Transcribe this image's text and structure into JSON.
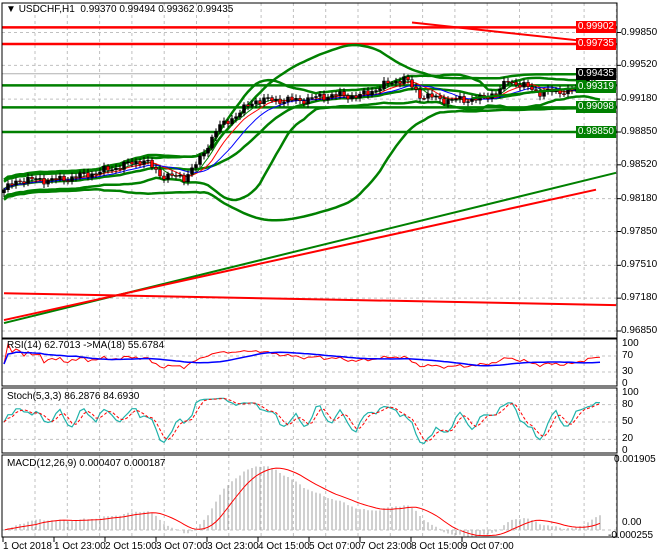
{
  "header": {
    "symbol": "USDCHF,H1",
    "open": "0.99370",
    "high": "0.99494",
    "low": "0.99362",
    "close": "0.99435"
  },
  "chart_data": {
    "type": "candlestick",
    "symbol": "USDCHF",
    "timeframe": "H1",
    "price_axis": {
      "ticks": [
        "0.99850",
        "0.99520",
        "0.99180",
        "0.98850",
        "0.98520",
        "0.98180",
        "0.97850",
        "0.97510",
        "0.97180",
        "0.96850"
      ],
      "range": [
        0.9685,
        1.0005
      ]
    },
    "time_axis": {
      "ticks": [
        "1 Oct 2018",
        "1 Oct 23:00",
        "2 Oct 15:00",
        "3 Oct 07:00",
        "3 Oct 23:00",
        "4 Oct 15:00",
        "5 Oct 07:00",
        "7 Oct 23:00",
        "8 Oct 15:00",
        "9 Oct 07:00"
      ]
    },
    "bar_count": 150,
    "close_path": [
      [
        0,
        0.9827
      ],
      [
        4,
        0.9837
      ],
      [
        14,
        0.9837
      ],
      [
        24,
        0.9845
      ],
      [
        35,
        0.9857
      ],
      [
        39,
        0.9842
      ],
      [
        45,
        0.9839
      ],
      [
        49,
        0.9857
      ],
      [
        53,
        0.9887
      ],
      [
        58,
        0.9902
      ],
      [
        63,
        0.9917
      ],
      [
        74,
        0.9917
      ],
      [
        82,
        0.9922
      ],
      [
        89,
        0.9921
      ],
      [
        95,
        0.9932
      ],
      [
        100,
        0.9939
      ],
      [
        104,
        0.9922
      ],
      [
        111,
        0.9917
      ],
      [
        119,
        0.9918
      ],
      [
        124,
        0.9927
      ],
      [
        126,
        0.9937
      ],
      [
        134,
        0.9925
      ],
      [
        143,
        0.9927
      ],
      [
        146,
        0.994
      ],
      [
        149,
        0.99435
      ]
    ],
    "price_labels": [
      {
        "value": "0.99902",
        "color": "#ff0000"
      },
      {
        "value": "0.99735",
        "color": "#ff0000"
      },
      {
        "value": "0.99435",
        "color": "#000000"
      },
      {
        "value": "0.99319",
        "color": "#008000"
      },
      {
        "value": "0.99098",
        "color": "#008000"
      },
      {
        "value": "0.98850",
        "color": "#008000"
      }
    ],
    "horizontal_levels": [
      {
        "price": 0.99902,
        "color": "#ff0000"
      },
      {
        "price": 0.99735,
        "color": "#ff0000"
      },
      {
        "price": 0.99319,
        "color": "#008000"
      },
      {
        "price": 0.99098,
        "color": "#008000"
      },
      {
        "price": 0.9885,
        "color": "#008000"
      }
    ],
    "trendlines": [
      {
        "from": [
          102,
          0.9995
        ],
        "to": [
          153,
          0.9973
        ],
        "color": "#ff0000"
      },
      {
        "from": [
          117,
          0.9919
        ],
        "to": [
          153,
          0.9933
        ],
        "color": "#008000"
      },
      {
        "from": [
          0,
          0.9693
        ],
        "to": [
          153,
          0.9844
        ],
        "color": "#008000"
      },
      {
        "from": [
          0,
          0.9696
        ],
        "to": [
          148,
          0.9827
        ],
        "color": "#ff0000"
      },
      {
        "from": [
          0,
          0.9723
        ],
        "to": [
          153,
          0.9711
        ],
        "color": "#ff0000"
      }
    ],
    "up_color": "#000000",
    "down_color": "#ff0000",
    "band_color": "#008000"
  },
  "rsi": {
    "label": "RSI(14) 62.7013  ->MA(18) 55.6784",
    "ticks": [
      "100",
      "70",
      "30",
      "0"
    ]
  },
  "stoch": {
    "label": "Stoch(5,3,3) 86.2876 84.6930",
    "ticks": [
      "100",
      "80",
      "50",
      "20",
      "0"
    ]
  },
  "macd": {
    "label": "MACD(12,26,9) 0.000407 0.000187",
    "ticks": [
      "0.001905",
      "0.00",
      "-0.000255"
    ]
  }
}
